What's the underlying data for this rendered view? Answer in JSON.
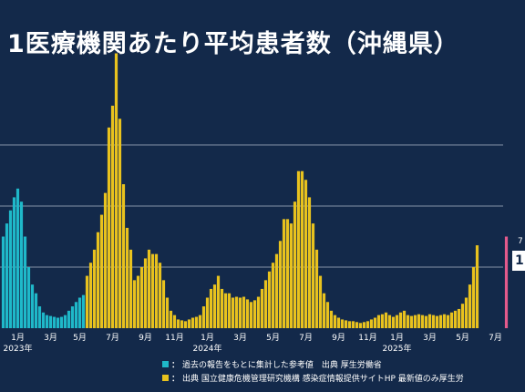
{
  "title": "1医療機関あたり平均患者数（沖縄県）",
  "legend": [
    {
      "color": "#1fb8c9",
      "marker": "：",
      "text": "過去の報告をもとに集計した参考値　出典 厚生労働省"
    },
    {
      "color": "#e8c21e",
      "marker": "：",
      "text": "出典 国立健康危機管理研究機構 感染症情報提供サイトHP 最新値のみ厚生労"
    }
  ],
  "callout": {
    "top": "7",
    "value": "1"
  },
  "chart_data": {
    "type": "bar",
    "grid": true,
    "ylim": [
      0,
      28
    ],
    "gridlines": [
      7,
      14,
      21
    ],
    "x_tick_labels": [
      {
        "label": "1月",
        "week": 1
      },
      {
        "label": "3月",
        "week": 10
      },
      {
        "label": "5月",
        "week": 18
      },
      {
        "label": "7月",
        "week": 27
      },
      {
        "label": "9月",
        "week": 36
      },
      {
        "label": "11月",
        "week": 44
      },
      {
        "label": "1月",
        "week": 53
      },
      {
        "label": "3月",
        "week": 62
      },
      {
        "label": "5月",
        "week": 71
      },
      {
        "label": "7月",
        "week": 80
      },
      {
        "label": "9月",
        "week": 89
      },
      {
        "label": "11月",
        "week": 97
      },
      {
        "label": "1月",
        "week": 105
      },
      {
        "label": "3月",
        "week": 114
      },
      {
        "label": "5月",
        "week": 123
      },
      {
        "label": "7月",
        "week": 132
      }
    ],
    "year_labels": [
      {
        "label": "2023年",
        "week": 1
      },
      {
        "label": "2024年",
        "week": 53
      },
      {
        "label": "2025年",
        "week": 105
      }
    ],
    "series": [
      {
        "color": "#1fb8c9",
        "start_week": -3,
        "values": [
          10.5,
          12.0,
          13.5,
          15.0,
          16.0,
          14.5,
          10.5,
          7.0,
          5.0,
          4.0,
          2.5,
          1.8,
          1.5,
          1.4,
          1.3,
          1.2,
          1.3,
          1.5,
          2.0,
          2.5,
          3.0,
          3.5,
          3.8
        ]
      },
      {
        "color": "#e8c21e",
        "start_week": 20,
        "values": [
          6.0,
          7.5,
          9.0,
          11.0,
          13.0,
          15.5,
          23.0,
          25.5,
          31.5,
          24.0,
          16.5,
          11.5,
          9.0,
          5.5,
          6.0,
          7.0,
          8.0,
          9.0,
          8.5,
          8.5,
          7.5,
          5.5,
          3.5,
          2.0,
          1.5,
          1.0,
          0.9,
          0.8,
          1.0,
          1.2,
          1.3,
          1.5,
          2.5,
          3.5,
          4.5,
          5.0,
          6.0,
          4.5,
          4.0,
          4.0,
          3.5,
          3.6,
          3.5,
          3.6,
          3.3,
          3.0,
          3.2,
          3.6,
          4.5,
          5.5,
          6.5,
          7.5,
          8.5,
          10.0,
          12.5,
          12.5,
          12.0,
          14.5,
          18.0,
          18.0,
          17.0,
          15.0,
          12.0,
          9.0,
          6.0,
          4.0,
          3.0,
          2.0,
          1.5,
          1.2,
          1.0,
          0.9,
          0.8,
          0.8,
          0.7,
          0.6,
          0.7,
          0.8,
          1.0,
          1.2,
          1.5,
          1.6,
          1.8,
          1.5,
          1.3,
          1.5,
          1.8,
          2.0,
          1.5,
          1.4,
          1.5,
          1.6,
          1.5,
          1.4,
          1.6,
          1.5,
          1.4,
          1.5,
          1.6,
          1.5,
          1.8,
          2.0,
          2.2,
          2.8,
          3.5,
          5.0,
          7.0,
          9.5
        ]
      },
      {
        "color": "#e45a8c",
        "start_week": 135,
        "values": [
          10.5
        ]
      }
    ]
  }
}
